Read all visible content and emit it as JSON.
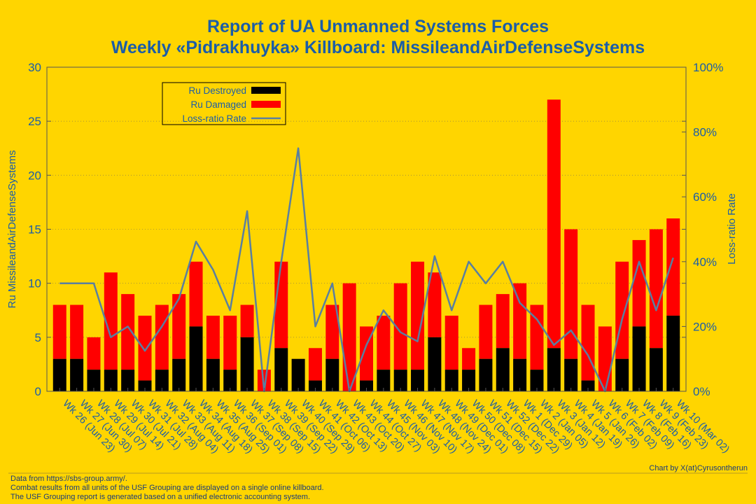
{
  "header": {
    "title_line1": "Report of UA Unmanned Systems Forces",
    "title_line2": "Weekly «Pidrakhuyka» Killboard: MissileandAirDefenseSystems"
  },
  "footer": {
    "notes": [
      "Data from https://sbs-group.army/.",
      "Combat results from all units of the USF Grouping are displayed on a single online killboard.",
      "The USF Grouping report is generated based on a unified electronic accounting system."
    ],
    "credit": "Chart by X(at)Cyrusontherun"
  },
  "colors": {
    "background": "#FFD500",
    "destroyed": "#000000",
    "damaged": "#FF0000",
    "ratio": "#5A7FA0",
    "text": "#1B5DA8"
  },
  "chart_data": {
    "type": "bar",
    "stacked": true,
    "ylabel": "Ru MissileandAirDefenseSystems",
    "y2label": "Loss-ratio Rate",
    "ylim": [
      0,
      30
    ],
    "yticks": [
      "0",
      "5",
      "10",
      "15",
      "20",
      "25",
      "30"
    ],
    "y2lim": [
      0,
      100
    ],
    "y2ticks": [
      "0%",
      "20%",
      "40%",
      "60%",
      "80%",
      "100%"
    ],
    "grid": true,
    "legend_position": "top-left",
    "categories": [
      "Wk 26 (Jun 23)",
      "Wk 27 (Jun 30)",
      "Wk 28 (Jul 07)",
      "Wk 29 (Jul 14)",
      "Wk 30 (Jul 21)",
      "Wk 31 (Jul 28)",
      "Wk 32 (Aug 04)",
      "Wk 33 (Aug 11)",
      "Wk 34 (Aug 18)",
      "Wk 35 (Aug 25)",
      "Wk 36 (Sep 01)",
      "Wk 37 (Sep 08)",
      "Wk 38 (Sep 15)",
      "Wk 39 (Sep 22)",
      "Wk 40 (Sep 29)",
      "Wk 41 (Oct 06)",
      "Wk 42 (Oct 13)",
      "Wk 43 (Oct 20)",
      "Wk 44 (Oct 27)",
      "Wk 45 (Nov 03)",
      "Wk 46 (Nov 10)",
      "Wk 47 (Nov 17)",
      "Wk 48 (Nov 24)",
      "Wk 49 (Dec 01)",
      "Wk 50 (Dec 08)",
      "Wk 51 (Dec 15)",
      "Wk 52 (Dec 22)",
      "Wk 1 (Dec 29)",
      "Wk 2 (Jan 05)",
      "Wk 3 (Jan 12)",
      "Wk 4 (Jan 19)",
      "Wk 5 (Jan 26)",
      "Wk 6 (Feb 02)",
      "Wk 7 (Feb 09)",
      "Wk 8 (Feb 16)",
      "Wk 9 (Feb 23)",
      "Wk 10 (Mar 02)"
    ],
    "series": [
      {
        "name": "Ru Destroyed",
        "axis": "left",
        "values": [
          3,
          3,
          2,
          2,
          2,
          1,
          2,
          3,
          6,
          3,
          2,
          5,
          0,
          4,
          3,
          1,
          3,
          0,
          1,
          2,
          2,
          2,
          5,
          2,
          2,
          3,
          4,
          3,
          2,
          4,
          3,
          1,
          0,
          3,
          6,
          4,
          7
        ]
      },
      {
        "name": "Ru Damaged",
        "axis": "left",
        "values": [
          5,
          5,
          3,
          9,
          7,
          6,
          6,
          6,
          6,
          4,
          5,
          3,
          2,
          8,
          0,
          3,
          5,
          10,
          5,
          5,
          8,
          10,
          6,
          5,
          2,
          5,
          5,
          7,
          6,
          23,
          12,
          7,
          6,
          9,
          8,
          11,
          9
        ]
      },
      {
        "name": "Loss-ratio Rate",
        "axis": "right",
        "type": "line",
        "unit": "%",
        "values": [
          33.3,
          33.3,
          33.3,
          16.7,
          20,
          12.5,
          20,
          28.6,
          46.2,
          37.5,
          25,
          55.6,
          0,
          40,
          75,
          20,
          33.3,
          0,
          14.3,
          25,
          18.2,
          15.4,
          41.7,
          25,
          40,
          33.3,
          40,
          27.3,
          22.2,
          14.3,
          18.8,
          11.1,
          0,
          22.2,
          40,
          25,
          41.2
        ]
      }
    ]
  }
}
